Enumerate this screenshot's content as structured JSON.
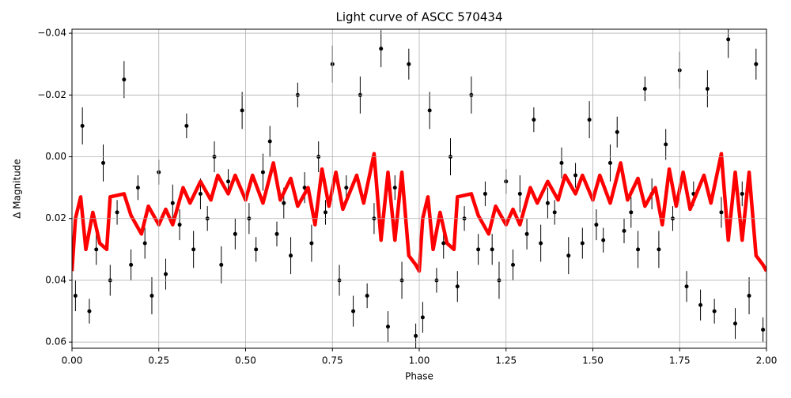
{
  "chart_data": {
    "type": "scatter",
    "title": "Light curve of ASCC 570434",
    "x_label": "Phase",
    "y_label": "Δ Magnitude",
    "xlim": [
      0,
      2
    ],
    "ylim": [
      -0.0413,
      0.062
    ],
    "invert_y": true,
    "grid": true,
    "xticks": [
      {
        "value": 0,
        "label": "0.00"
      },
      {
        "value": 0.25,
        "label": "0.25"
      },
      {
        "value": 0.5,
        "label": "0.50"
      },
      {
        "value": 0.75,
        "label": "0.75"
      },
      {
        "value": 1,
        "label": "1.00"
      },
      {
        "value": 1.25,
        "label": "1.25"
      },
      {
        "value": 1.5,
        "label": "1.50"
      },
      {
        "value": 1.75,
        "label": "1.75"
      },
      {
        "value": 2,
        "label": "2.00"
      }
    ],
    "yticks": [
      {
        "value": -0.04,
        "label": "−0.04"
      },
      {
        "value": -0.02,
        "label": "−0.02"
      },
      {
        "value": 0,
        "label": "0.00"
      },
      {
        "value": 0.02,
        "label": "0.02"
      },
      {
        "value": 0.04,
        "label": "0.04"
      },
      {
        "value": 0.06,
        "label": "0.06"
      }
    ],
    "series": [
      {
        "type": "errorbar",
        "color": "#000000",
        "x": [
          0.01,
          0.03,
          0.05,
          0.07,
          0.09,
          0.11,
          0.13,
          0.15,
          0.17,
          0.19,
          0.21,
          0.23,
          0.25,
          0.27,
          0.29,
          0.31,
          0.33,
          0.35,
          0.37,
          0.39,
          0.41,
          0.43,
          0.45,
          0.47,
          0.49,
          0.51,
          0.53,
          0.55,
          0.57,
          0.59,
          0.61,
          0.63,
          0.65,
          0.67,
          0.69,
          0.71,
          0.73,
          0.75,
          0.77,
          0.79,
          0.81,
          0.83,
          0.85,
          0.87,
          0.89,
          0.91,
          0.93,
          0.95,
          0.97,
          0.99,
          1.01,
          1.03,
          1.05,
          1.07,
          1.09,
          1.11,
          1.13,
          1.15,
          1.17,
          1.19,
          1.21,
          1.23,
          1.25,
          1.27,
          1.29,
          1.31,
          1.33,
          1.35,
          1.37,
          1.39,
          1.41,
          1.43,
          1.45,
          1.47,
          1.49,
          1.51,
          1.53,
          1.55,
          1.57,
          1.59,
          1.61,
          1.63,
          1.65,
          1.67,
          1.69,
          1.71,
          1.73,
          1.75,
          1.77,
          1.79,
          1.81,
          1.83,
          1.85,
          1.87,
          1.89,
          1.91,
          1.93,
          1.95,
          1.97,
          1.99
        ],
        "values": [
          0.045,
          -0.01,
          0.05,
          0.03,
          0.002,
          0.04,
          0.018,
          -0.025,
          0.035,
          0.01,
          0.028,
          0.045,
          0.005,
          0.038,
          0.015,
          0.022,
          -0.01,
          0.03,
          0.012,
          0.02,
          0.0,
          0.035,
          0.008,
          0.025,
          -0.015,
          0.02,
          0.03,
          0.005,
          -0.005,
          0.025,
          0.015,
          0.032,
          -0.02,
          0.01,
          0.028,
          0.0,
          0.018,
          -0.03,
          0.04,
          0.01,
          0.05,
          -0.02,
          0.045,
          0.02,
          -0.035,
          0.055,
          0.01,
          0.04,
          -0.03,
          0.058,
          0.052,
          -0.015,
          0.04,
          0.028,
          0.0,
          0.042,
          0.02,
          -0.02,
          0.03,
          0.012,
          0.03,
          0.04,
          0.008,
          0.035,
          0.012,
          0.025,
          -0.012,
          0.028,
          0.015,
          0.018,
          0.002,
          0.032,
          0.006,
          0.028,
          -0.012,
          0.022,
          0.027,
          0.002,
          -0.008,
          0.024,
          0.018,
          0.03,
          -0.022,
          0.012,
          0.03,
          -0.004,
          0.02,
          -0.028,
          0.042,
          0.012,
          0.048,
          -0.022,
          0.05,
          0.018,
          -0.038,
          0.054,
          0.012,
          0.045,
          -0.03,
          0.056
        ],
        "errors": [
          0.005,
          0.006,
          0.004,
          0.005,
          0.006,
          0.005,
          0.004,
          0.006,
          0.005,
          0.004,
          0.005,
          0.006,
          0.004,
          0.005,
          0.006,
          0.005,
          0.004,
          0.006,
          0.005,
          0.004,
          0.005,
          0.006,
          0.004,
          0.005,
          0.006,
          0.005,
          0.004,
          0.006,
          0.005,
          0.004,
          0.005,
          0.006,
          0.004,
          0.005,
          0.006,
          0.005,
          0.004,
          0.006,
          0.005,
          0.004,
          0.005,
          0.006,
          0.004,
          0.005,
          0.006,
          0.005,
          0.004,
          0.006,
          0.005,
          0.004,
          0.005,
          0.006,
          0.004,
          0.005,
          0.006,
          0.005,
          0.004,
          0.006,
          0.005,
          0.004,
          0.005,
          0.006,
          0.004,
          0.005,
          0.006,
          0.005,
          0.004,
          0.006,
          0.005,
          0.004,
          0.005,
          0.006,
          0.004,
          0.005,
          0.006,
          0.005,
          0.004,
          0.006,
          0.005,
          0.004,
          0.005,
          0.006,
          0.004,
          0.005,
          0.006,
          0.005,
          0.004,
          0.006,
          0.005,
          0.004,
          0.005,
          0.006,
          0.004,
          0.005,
          0.006,
          0.005,
          0.004,
          0.006,
          0.005,
          0.004
        ]
      },
      {
        "type": "line",
        "color": "#ff0000",
        "x": [
          0,
          0.01,
          0.025,
          0.04,
          0.06,
          0.08,
          0.1,
          0.11,
          0.15,
          0.17,
          0.2,
          0.22,
          0.25,
          0.27,
          0.29,
          0.32,
          0.34,
          0.37,
          0.4,
          0.42,
          0.45,
          0.47,
          0.5,
          0.52,
          0.55,
          0.58,
          0.6,
          0.63,
          0.65,
          0.68,
          0.7,
          0.72,
          0.74,
          0.76,
          0.78,
          0.82,
          0.84,
          0.87,
          0.89,
          0.91,
          0.93,
          0.95,
          0.97,
          0.99,
          1.0,
          1.01,
          1.025,
          1.04,
          1.06,
          1.08,
          1.1,
          1.11,
          1.15,
          1.17,
          1.2,
          1.22,
          1.25,
          1.27,
          1.29,
          1.32,
          1.34,
          1.37,
          1.4,
          1.42,
          1.45,
          1.47,
          1.5,
          1.52,
          1.55,
          1.58,
          1.6,
          1.63,
          1.65,
          1.68,
          1.7,
          1.72,
          1.74,
          1.76,
          1.78,
          1.82,
          1.84,
          1.87,
          1.89,
          1.91,
          1.93,
          1.95,
          1.97,
          1.99,
          2.0
        ],
        "values": [
          0.037,
          0.02,
          0.013,
          0.03,
          0.018,
          0.028,
          0.03,
          0.013,
          0.012,
          0.019,
          0.025,
          0.016,
          0.022,
          0.017,
          0.022,
          0.01,
          0.015,
          0.008,
          0.014,
          0.006,
          0.012,
          0.006,
          0.014,
          0.006,
          0.015,
          0.002,
          0.014,
          0.007,
          0.016,
          0.01,
          0.022,
          0.004,
          0.016,
          0.005,
          0.017,
          0.006,
          0.015,
          -0.001,
          0.027,
          0.005,
          0.027,
          0.005,
          0.032,
          0.035,
          0.037,
          0.02,
          0.013,
          0.03,
          0.018,
          0.028,
          0.03,
          0.013,
          0.012,
          0.019,
          0.025,
          0.016,
          0.022,
          0.017,
          0.022,
          0.01,
          0.015,
          0.008,
          0.014,
          0.006,
          0.012,
          0.006,
          0.014,
          0.006,
          0.015,
          0.002,
          0.014,
          0.007,
          0.016,
          0.01,
          0.022,
          0.004,
          0.016,
          0.005,
          0.017,
          0.006,
          0.015,
          -0.001,
          0.027,
          0.005,
          0.027,
          0.005,
          0.032,
          0.035,
          0.037
        ]
      }
    ]
  }
}
